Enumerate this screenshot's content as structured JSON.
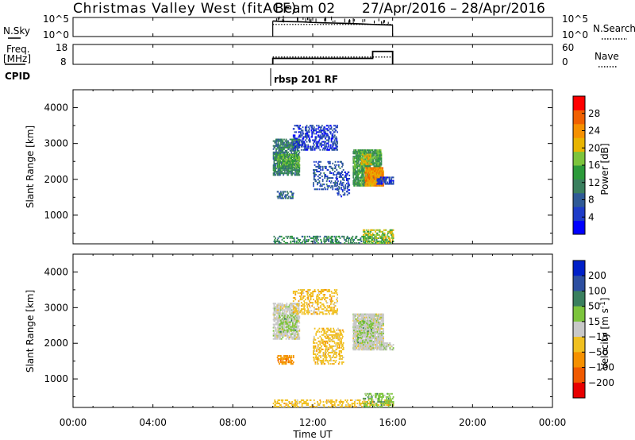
{
  "header": {
    "station": "Christmas Valley West (fitACF)",
    "beam": "Beam 02",
    "dates": "27/Apr/2016 – 28/Apr/2016"
  },
  "xaxis": {
    "label": "Time UT",
    "range_hours": [
      0,
      24
    ],
    "ticks": [
      {
        "h": 0,
        "label": "00:00"
      },
      {
        "h": 4,
        "label": "04:00"
      },
      {
        "h": 8,
        "label": "08:00"
      },
      {
        "h": 12,
        "label": "12:00"
      },
      {
        "h": 16,
        "label": "16:00"
      },
      {
        "h": 20,
        "label": "20:00"
      },
      {
        "h": 24,
        "label": "00:00"
      }
    ]
  },
  "nsky_panel": {
    "left_label": "N.Sky",
    "right_label": "N.Search",
    "left_ticks": [
      "10^5",
      "10^0"
    ],
    "right_ticks": [
      "10^5",
      "10^0"
    ]
  },
  "freq_panel": {
    "left_label_line1": "Freq.",
    "left_label_line2": "[MHz]",
    "right_label": "Nave",
    "left_ticks": [
      {
        "v": 18,
        "label": "18"
      },
      {
        "v": 8,
        "label": "8"
      }
    ],
    "right_ticks": [
      {
        "v": 60,
        "label": "60"
      },
      {
        "v": 0,
        "label": "0"
      }
    ]
  },
  "cpid": {
    "label": "CPID",
    "program": "rbsp 201 RF"
  },
  "chart_data": [
    {
      "type": "line",
      "panel": "N.Sky / N.Search",
      "scale": "log",
      "ylim": [
        1,
        100000
      ],
      "series": [
        {
          "name": "N.Sky",
          "x": [
            10.0,
            10.5,
            11.0,
            11.5,
            12.0,
            12.5,
            13.0,
            13.5,
            14.0,
            14.5,
            15.0,
            15.5,
            16.0
          ],
          "values": [
            12000,
            9000,
            8000,
            7000,
            5000,
            4000,
            3500,
            3000,
            2500,
            2000,
            1500,
            1200,
            1000
          ]
        },
        {
          "name": "N.Search",
          "x": [
            10.0,
            13.0,
            16.0
          ],
          "values": [
            1500,
            1500,
            1500
          ]
        }
      ]
    },
    {
      "type": "line",
      "panel": "Freq / Nave",
      "series": [
        {
          "name": "Freq. [MHz]",
          "ylim": [
            8,
            18
          ],
          "x": [
            10.0,
            15.0,
            15.0,
            16.0
          ],
          "values": [
            11.0,
            11.0,
            14.5,
            14.5
          ]
        },
        {
          "name": "Nave",
          "ylim": [
            0,
            60
          ],
          "x": [
            10.0,
            16.0
          ],
          "values": [
            22,
            22
          ]
        }
      ]
    },
    {
      "type": "heatmap",
      "panel": "Power",
      "xlabel": "Time UT",
      "ylabel": "Slant Range [km]",
      "xlim": [
        0,
        24
      ],
      "ylim": [
        200,
        4500
      ],
      "yticks": [
        1000,
        2000,
        3000,
        4000
      ],
      "colorbar": {
        "label": "Power [dB]",
        "range": [
          0,
          32
        ],
        "ticks": [
          4,
          8,
          12,
          16,
          20,
          24,
          28
        ],
        "colors": [
          "#0000ff",
          "#1e3cc8",
          "#2f5a96",
          "#3a7f5e",
          "#2c9a3a",
          "#7cc43c",
          "#e8b400",
          "#f59000",
          "#f06000",
          "#ff0000"
        ]
      },
      "regions": [
        {
          "t": [
            10.0,
            11.3
          ],
          "r": [
            2100,
            3100
          ],
          "level": 11,
          "density": 0.55
        },
        {
          "t": [
            10.2,
            11.3
          ],
          "r": [
            2300,
            2700
          ],
          "level": 15,
          "density": 0.6
        },
        {
          "t": [
            11.0,
            13.2
          ],
          "r": [
            2800,
            3500
          ],
          "level": 5,
          "density": 0.35
        },
        {
          "t": [
            12.0,
            13.5
          ],
          "r": [
            1700,
            2500
          ],
          "level": 7,
          "density": 0.22
        },
        {
          "t": [
            14.0,
            15.4
          ],
          "r": [
            1800,
            2800
          ],
          "level": 14,
          "density": 0.7
        },
        {
          "t": [
            14.6,
            15.5
          ],
          "r": [
            1800,
            2300
          ],
          "level": 24,
          "density": 0.85
        },
        {
          "t": [
            14.4,
            14.9
          ],
          "r": [
            2400,
            2700
          ],
          "level": 20,
          "density": 0.6
        },
        {
          "t": [
            15.2,
            16.0
          ],
          "r": [
            1850,
            2050
          ],
          "level": 5,
          "density": 0.55
        },
        {
          "t": [
            10.2,
            11.0
          ],
          "r": [
            1450,
            1650
          ],
          "level": 9,
          "density": 0.5
        },
        {
          "t": [
            13.2,
            13.8
          ],
          "r": [
            1500,
            2200
          ],
          "level": 6,
          "density": 0.25
        },
        {
          "t": [
            10.0,
            16.0
          ],
          "r": [
            200,
            420
          ],
          "level": 12,
          "density": 0.28
        },
        {
          "t": [
            14.5,
            16.0
          ],
          "r": [
            200,
            600
          ],
          "level": 18,
          "density": 0.35
        }
      ]
    },
    {
      "type": "heatmap",
      "panel": "Velocity",
      "xlabel": "Time UT",
      "ylabel": "Slant Range [km]",
      "xlim": [
        0,
        24
      ],
      "ylim": [
        200,
        4500
      ],
      "yticks": [
        1000,
        2000,
        3000,
        4000
      ],
      "colorbar": {
        "label": "Velocity [m s^-1]",
        "tick_labels": [
          "200",
          "100",
          "50",
          "15",
          "−15",
          "−50",
          "−100",
          "−200"
        ],
        "colors": [
          "#0020c8",
          "#2d4fa0",
          "#3a7f5e",
          "#7cc43c",
          "#c8c8c8",
          "#f0c020",
          "#f59000",
          "#f05a00",
          "#e80000"
        ]
      },
      "regions": [
        {
          "t": [
            10.0,
            11.3
          ],
          "r": [
            2100,
            3100
          ],
          "class": 4,
          "density": 0.55
        },
        {
          "t": [
            10.3,
            11.2
          ],
          "r": [
            2300,
            2800
          ],
          "class": 3,
          "density": 0.25
        },
        {
          "t": [
            11.0,
            13.2
          ],
          "r": [
            2800,
            3500
          ],
          "class": 5,
          "density": 0.3
        },
        {
          "t": [
            12.0,
            13.5
          ],
          "r": [
            1400,
            2400
          ],
          "class": 5,
          "density": 0.3
        },
        {
          "t": [
            14.0,
            15.5
          ],
          "r": [
            1800,
            2800
          ],
          "class": 4,
          "density": 0.75
        },
        {
          "t": [
            14.2,
            15.0
          ],
          "r": [
            2000,
            2600
          ],
          "class": 3,
          "density": 0.2
        },
        {
          "t": [
            15.3,
            16.0
          ],
          "r": [
            1800,
            2000
          ],
          "class": 4,
          "density": 0.5
        },
        {
          "t": [
            10.2,
            11.0
          ],
          "r": [
            1400,
            1650
          ],
          "class": 6,
          "density": 0.45
        },
        {
          "t": [
            10.0,
            16.0
          ],
          "r": [
            200,
            420
          ],
          "class": 5,
          "density": 0.3
        },
        {
          "t": [
            14.5,
            16.0
          ],
          "r": [
            200,
            600
          ],
          "class": 3,
          "density": 0.3
        }
      ]
    }
  ]
}
